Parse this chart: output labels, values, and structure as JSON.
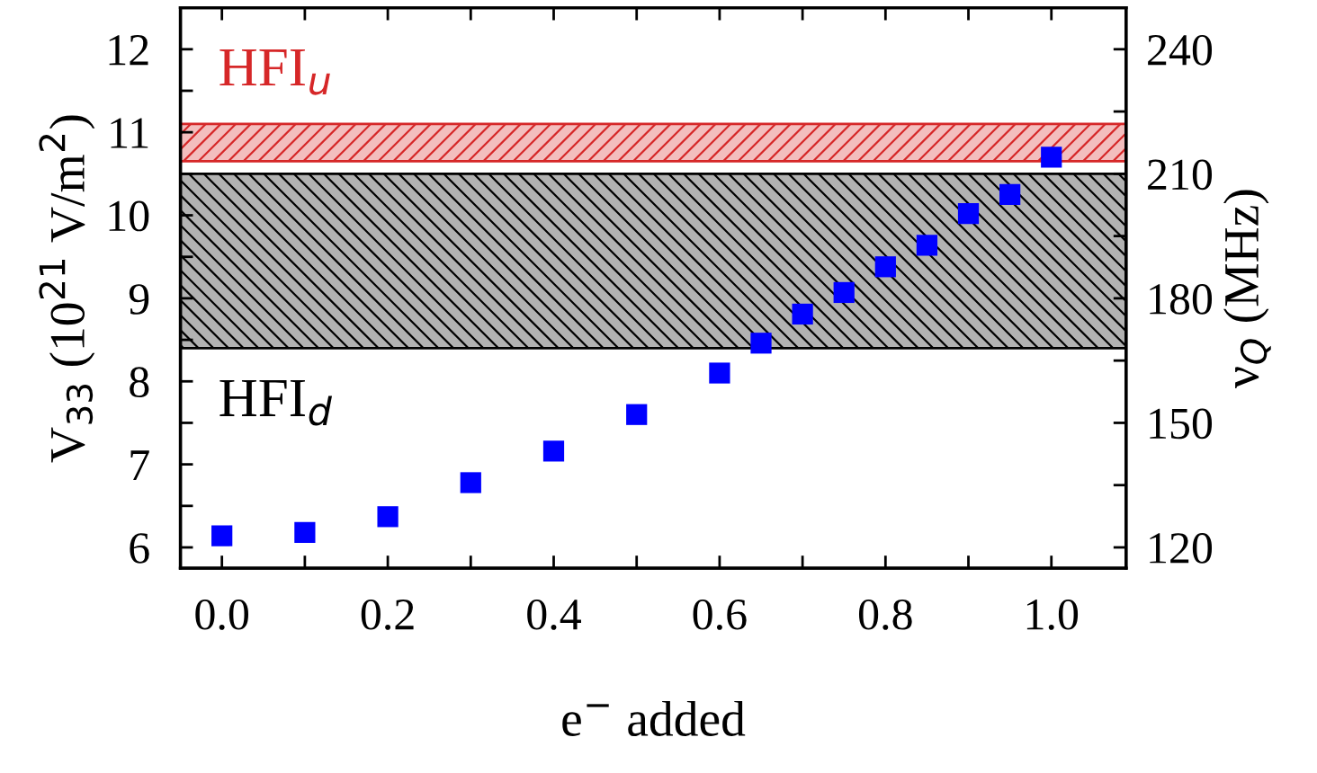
{
  "chart_data": {
    "type": "scatter",
    "xlabel": "e$^{−}$ added",
    "ylabel": "V$_{33}$ (10$^{21}$ V/m$^{2}$)",
    "y2label": "ν$_{Q}$ (MHz)",
    "x": [
      0.0,
      0.1,
      0.2,
      0.3,
      0.4,
      0.5,
      0.6,
      0.65,
      0.7,
      0.75,
      0.8,
      0.85,
      0.9,
      0.95,
      1.0
    ],
    "series": [
      {
        "color": "#0000ff",
        "values": [
          6.14,
          6.18,
          6.37,
          6.78,
          7.16,
          7.6,
          8.1,
          8.46,
          8.81,
          9.07,
          9.38,
          9.64,
          10.02,
          10.25,
          10.7
        ]
      }
    ],
    "marker": "square",
    "xlim": [
      -0.05,
      1.09
    ],
    "ylim": [
      5.75,
      12.5
    ],
    "y2lim": [
      115,
      250
    ],
    "xticks": [
      {
        "value": 0.0,
        "label": "0.0"
      },
      {
        "value": 0.1,
        "label": null
      },
      {
        "value": 0.2,
        "label": "0.2"
      },
      {
        "value": 0.3,
        "label": null
      },
      {
        "value": 0.4,
        "label": "0.4"
      },
      {
        "value": 0.5,
        "label": null
      },
      {
        "value": 0.6,
        "label": "0.6"
      },
      {
        "value": 0.7,
        "label": null
      },
      {
        "value": 0.8,
        "label": "0.8"
      },
      {
        "value": 0.9,
        "label": null
      },
      {
        "value": 1.0,
        "label": "1.0"
      }
    ],
    "yticks": [
      6,
      {
        "value": 6.5,
        "label": null
      },
      7,
      {
        "value": 7.5,
        "label": null
      },
      8,
      {
        "value": 8.5,
        "label": null
      },
      9,
      {
        "value": 9.5,
        "label": null
      },
      10,
      {
        "value": 10.5,
        "label": null
      },
      11,
      {
        "value": 11.5,
        "label": null
      },
      12
    ],
    "y2ticks": [
      120,
      {
        "value": 135,
        "label": null
      },
      150,
      {
        "value": 165,
        "label": null
      },
      180,
      {
        "value": 195,
        "label": null
      },
      210,
      {
        "value": 225,
        "label": null
      },
      240
    ],
    "bands": [
      {
        "axis": "y",
        "from": 10.65,
        "to": 11.1,
        "color": "#d62728"
      },
      {
        "axis": "y",
        "from": 8.4,
        "to": 10.5,
        "color": "#000000"
      }
    ],
    "annotations": [
      "HFI$_{u}$",
      "HFI$_{d}$"
    ],
    "grid": false,
    "legend": false
  }
}
